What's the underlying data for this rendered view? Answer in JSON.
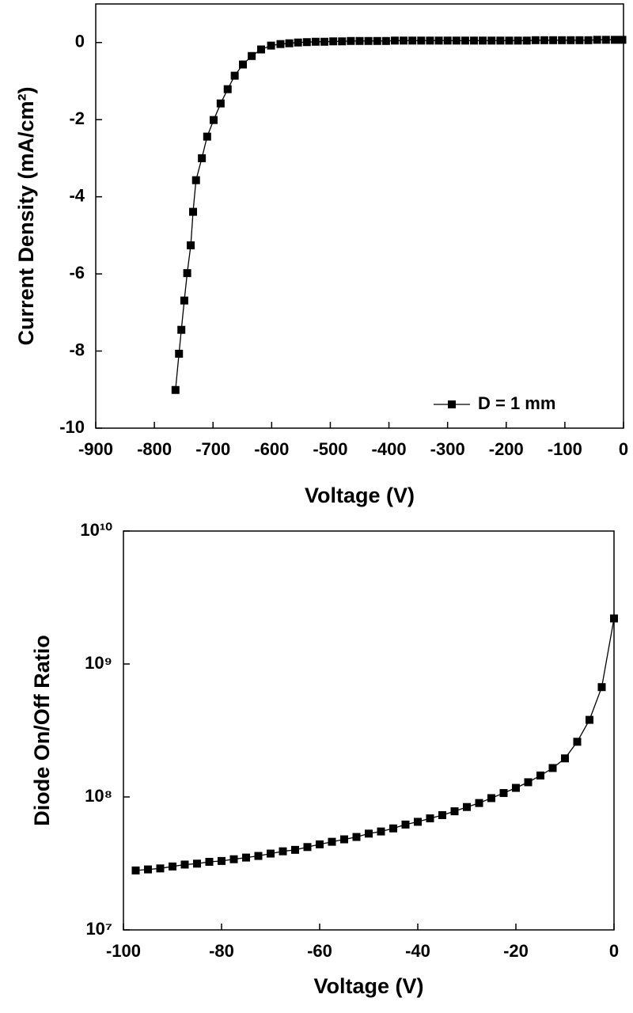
{
  "chart_data": [
    {
      "type": "line",
      "xlabel": "Voltage (V)",
      "ylabel": "Current Density (mA/cm²)",
      "x": [
        -764,
        -758,
        -754,
        -749,
        -744,
        -738,
        -734,
        -729,
        -719,
        -710,
        -699,
        -687,
        -675,
        -663,
        -649,
        -634,
        -618,
        -601,
        -585,
        -570,
        -555,
        -540,
        -525,
        -510,
        -495,
        -480,
        -465,
        -450,
        -435,
        -420,
        -405,
        -390,
        -375,
        -360,
        -345,
        -330,
        -315,
        -300,
        -285,
        -270,
        -255,
        -240,
        -225,
        -210,
        -195,
        -180,
        -165,
        -150,
        -135,
        -120,
        -105,
        -90,
        -75,
        -60,
        -45,
        -30,
        -15,
        -2
      ],
      "series": [
        {
          "name": "D = 1 mm",
          "color": "#000000",
          "values": [
            -9.01,
            -8.07,
            -7.45,
            -6.69,
            -5.98,
            -5.26,
            -4.39,
            -3.57,
            -3.0,
            -2.44,
            -2.01,
            -1.58,
            -1.21,
            -0.86,
            -0.57,
            -0.35,
            -0.18,
            -0.08,
            -0.04,
            -0.02,
            0,
            0.01,
            0.02,
            0.02,
            0.03,
            0.03,
            0.04,
            0.04,
            0.04,
            0.04,
            0.04,
            0.05,
            0.05,
            0.05,
            0.05,
            0.05,
            0.05,
            0.05,
            0.05,
            0.05,
            0.05,
            0.05,
            0.05,
            0.05,
            0.05,
            0.05,
            0.05,
            0.06,
            0.06,
            0.06,
            0.06,
            0.06,
            0.06,
            0.06,
            0.07,
            0.07,
            0.07,
            0.07
          ]
        }
      ],
      "xlim": [
        -900,
        0
      ],
      "xticks": [
        -900,
        -800,
        -700,
        -600,
        -500,
        -400,
        -300,
        -200,
        -100,
        0
      ],
      "ylim": [
        -10,
        1
      ],
      "yticks": [
        -10,
        -8,
        -6,
        -4,
        -2,
        0
      ],
      "legend": "lower right"
    },
    {
      "type": "line",
      "log_y": true,
      "xlabel": "Voltage (V)",
      "ylabel": "Diode On/Off Ratio",
      "color": "#000000",
      "x": [
        -97.5,
        -95,
        -92.5,
        -90,
        -87.5,
        -85,
        -82.5,
        -80,
        -77.5,
        -75,
        -72.5,
        -70,
        -67.5,
        -65,
        -62.5,
        -60,
        -57.5,
        -55,
        -52.5,
        -50,
        -47.5,
        -45,
        -42.5,
        -40,
        -37.5,
        -35,
        -32.5,
        -30,
        -27.5,
        -25,
        -22.5,
        -20,
        -17.5,
        -15,
        -12.5,
        -10,
        -7.5,
        -5,
        -2.5,
        0
      ],
      "values": [
        28000000,
        28500000,
        29000000,
        30000000,
        31000000,
        31500000,
        32500000,
        33000000,
        34000000,
        35000000,
        36000000,
        37500000,
        39000000,
        40000000,
        42000000,
        44000000,
        46000000,
        48000000,
        50000000,
        53000000,
        55000000,
        58000000,
        62000000,
        65000000,
        69000000,
        73000000,
        78000000,
        84000000,
        90000000,
        98000000,
        107000000,
        117000000,
        129000000,
        145000000,
        165000000,
        195000000,
        260000000,
        380000000,
        670000000,
        2200000000
      ],
      "xlim": [
        -100,
        0
      ],
      "xticks": [
        -100,
        -80,
        -60,
        -40,
        -20,
        0
      ],
      "ylim": [
        10000000,
        10000000000
      ],
      "yticks": [
        {
          "value": 10000000,
          "label": "10⁷"
        },
        {
          "value": 100000000,
          "label": "10⁸"
        },
        {
          "value": 1000000000,
          "label": "10⁹"
        },
        {
          "value": 10000000000,
          "label": "10¹⁰"
        }
      ]
    }
  ]
}
